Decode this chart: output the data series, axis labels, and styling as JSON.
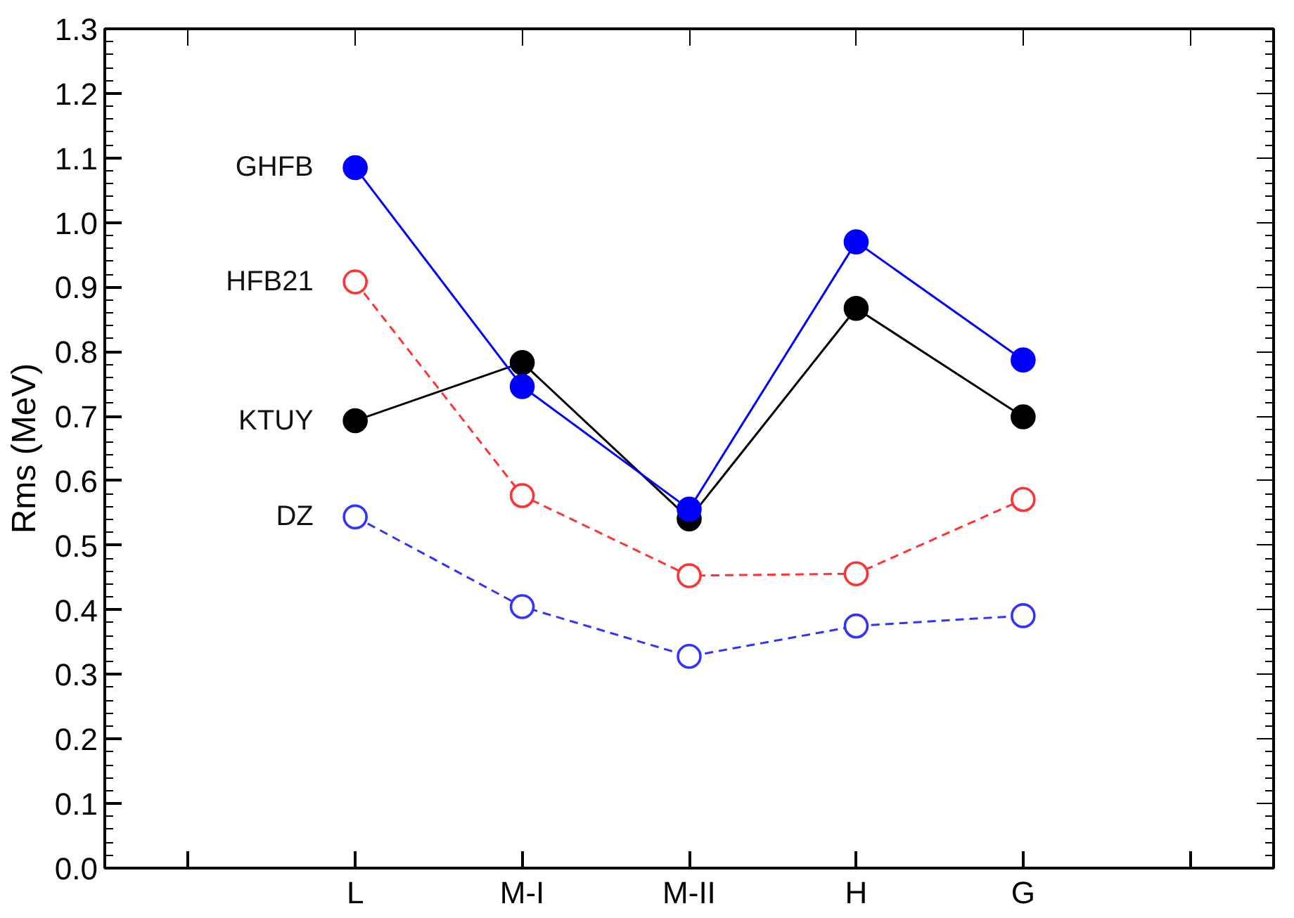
{
  "chart_data": {
    "type": "line",
    "ylabel": "Rms (MeV)",
    "categories": [
      "L",
      "M-I",
      "M-II",
      "H",
      "G"
    ],
    "ylim": [
      0,
      1.3
    ],
    "yticks": [
      {
        "value": 0,
        "label": "0.0"
      },
      0.1,
      0.2,
      0.3,
      0.4,
      0.5,
      0.6,
      0.7,
      0.8,
      0.9,
      {
        "value": 1,
        "label": "1.0"
      },
      1.1,
      1.2,
      1.3
    ],
    "grid": false,
    "legend": false,
    "marker": "circle",
    "series": [
      {
        "name": "GHFB",
        "color": "#0000ff",
        "line_style": "solid",
        "values": [
          1.085,
          0.746,
          0.556,
          0.97,
          0.787
        ]
      },
      {
        "name": "HFB21",
        "color": "#ff3333",
        "line_style": "dashed",
        "values": [
          0.908,
          0.577,
          0.453,
          0.456,
          0.571
        ]
      },
      {
        "name": "KTUY",
        "color": "#000000",
        "line_style": "solid",
        "values": [
          0.693,
          0.783,
          0.541,
          0.867,
          0.699
        ]
      },
      {
        "name": "DZ",
        "color": "#3333ff",
        "line_style": "dashed",
        "values": [
          0.544,
          0.405,
          0.328,
          0.375,
          0.391
        ]
      }
    ]
  }
}
